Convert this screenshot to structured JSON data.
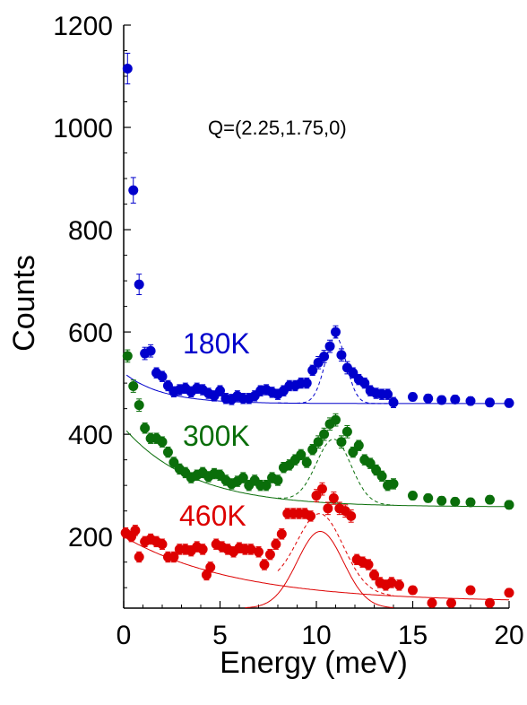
{
  "chart_data": {
    "type": "scatter",
    "xlabel": "Energy (meV)",
    "ylabel": "Counts",
    "xlim": [
      0,
      20
    ],
    "ylim": [
      60,
      1200
    ],
    "x_ticks": [
      "0",
      "5",
      "10",
      "15",
      "20"
    ],
    "y_ticks": [
      "200",
      "400",
      "600",
      "800",
      "1000",
      "1200"
    ],
    "annotation": "Q=(2.25,1.75,0)",
    "grid": false,
    "series": [
      {
        "name": "180K",
        "color": "#0000cc",
        "points": [
          [
            0.2,
            1115,
            30
          ],
          [
            0.5,
            877,
            25
          ],
          [
            0.8,
            693,
            20
          ],
          [
            1.1,
            558,
            12
          ],
          [
            1.4,
            563,
            12
          ],
          [
            1.7,
            520,
            10
          ],
          [
            2.0,
            513,
            10
          ],
          [
            2.3,
            495,
            10
          ],
          [
            2.6,
            483,
            10
          ],
          [
            2.9,
            487,
            10
          ],
          [
            3.2,
            490,
            10
          ],
          [
            3.5,
            483,
            10
          ],
          [
            3.8,
            490,
            10
          ],
          [
            4.1,
            487,
            10
          ],
          [
            4.4,
            480,
            10
          ],
          [
            4.7,
            475,
            10
          ],
          [
            5.0,
            485,
            10
          ],
          [
            5.3,
            470,
            10
          ],
          [
            5.6,
            468,
            10
          ],
          [
            5.9,
            475,
            10
          ],
          [
            6.2,
            470,
            10
          ],
          [
            6.5,
            470,
            10
          ],
          [
            6.8,
            475,
            10
          ],
          [
            7.1,
            485,
            10
          ],
          [
            7.4,
            487,
            10
          ],
          [
            7.7,
            482,
            10
          ],
          [
            8.0,
            478,
            10
          ],
          [
            8.3,
            485,
            10
          ],
          [
            8.6,
            495,
            10
          ],
          [
            8.9,
            495,
            10
          ],
          [
            9.2,
            500,
            10
          ],
          [
            9.5,
            500,
            10
          ],
          [
            9.8,
            525,
            10
          ],
          [
            10.1,
            540,
            12
          ],
          [
            10.4,
            552,
            12
          ],
          [
            10.7,
            572,
            12
          ],
          [
            11.0,
            600,
            12
          ],
          [
            11.3,
            555,
            12
          ],
          [
            11.6,
            530,
            12
          ],
          [
            11.9,
            520,
            10
          ],
          [
            12.2,
            507,
            10
          ],
          [
            12.5,
            500,
            10
          ],
          [
            12.8,
            485,
            10
          ],
          [
            13.1,
            480,
            10
          ],
          [
            13.4,
            478,
            10
          ],
          [
            13.7,
            478,
            10
          ],
          [
            14.0,
            462,
            10
          ],
          [
            15.0,
            473,
            8
          ],
          [
            15.8,
            470,
            8
          ],
          [
            16.5,
            467,
            8
          ],
          [
            17.2,
            468,
            8
          ],
          [
            18.0,
            465,
            8
          ],
          [
            19.0,
            462,
            8
          ],
          [
            20.0,
            461,
            8
          ]
        ]
      },
      {
        "name": "300K",
        "color": "#0a6e0a",
        "points": [
          [
            0.2,
            553,
            12
          ],
          [
            0.5,
            494,
            12
          ],
          [
            0.8,
            457,
            12
          ],
          [
            1.1,
            412,
            10
          ],
          [
            1.4,
            392,
            10
          ],
          [
            1.7,
            392,
            10
          ],
          [
            2.0,
            385,
            10
          ],
          [
            2.3,
            365,
            10
          ],
          [
            2.6,
            345,
            10
          ],
          [
            2.9,
            332,
            10
          ],
          [
            3.2,
            325,
            10
          ],
          [
            3.5,
            315,
            10
          ],
          [
            3.8,
            320,
            10
          ],
          [
            4.1,
            325,
            10
          ],
          [
            4.4,
            317,
            10
          ],
          [
            4.7,
            323,
            10
          ],
          [
            5.0,
            320,
            10
          ],
          [
            5.3,
            310,
            10
          ],
          [
            5.6,
            303,
            10
          ],
          [
            5.9,
            308,
            10
          ],
          [
            6.2,
            315,
            10
          ],
          [
            6.5,
            300,
            10
          ],
          [
            6.8,
            310,
            10
          ],
          [
            7.1,
            300,
            10
          ],
          [
            7.4,
            300,
            10
          ],
          [
            7.7,
            315,
            10
          ],
          [
            8.0,
            310,
            10
          ],
          [
            8.3,
            335,
            10
          ],
          [
            8.6,
            340,
            10
          ],
          [
            8.9,
            350,
            10
          ],
          [
            9.2,
            360,
            10
          ],
          [
            9.5,
            345,
            10
          ],
          [
            9.8,
            370,
            10
          ],
          [
            10.1,
            385,
            12
          ],
          [
            10.4,
            400,
            12
          ],
          [
            10.7,
            420,
            12
          ],
          [
            11.0,
            428,
            12
          ],
          [
            11.3,
            385,
            12
          ],
          [
            11.6,
            405,
            12
          ],
          [
            11.9,
            365,
            10
          ],
          [
            12.2,
            378,
            10
          ],
          [
            12.5,
            350,
            10
          ],
          [
            12.8,
            343,
            10
          ],
          [
            13.1,
            330,
            10
          ],
          [
            13.4,
            318,
            10
          ],
          [
            13.7,
            300,
            10
          ],
          [
            14.0,
            303,
            10
          ],
          [
            15.0,
            280,
            8
          ],
          [
            15.8,
            275,
            8
          ],
          [
            16.5,
            270,
            8
          ],
          [
            17.2,
            268,
            8
          ],
          [
            18.0,
            267,
            8
          ],
          [
            19.0,
            272,
            8
          ],
          [
            20.0,
            262,
            8
          ]
        ]
      },
      {
        "name": "460K",
        "color": "#dd0000",
        "points": [
          [
            0.1,
            207,
            10
          ],
          [
            0.4,
            200,
            10
          ],
          [
            0.6,
            212,
            10
          ],
          [
            0.8,
            160,
            10
          ],
          [
            1.1,
            190,
            10
          ],
          [
            1.4,
            195,
            10
          ],
          [
            1.7,
            190,
            10
          ],
          [
            2.0,
            185,
            10
          ],
          [
            2.3,
            160,
            10
          ],
          [
            2.6,
            160,
            10
          ],
          [
            2.9,
            175,
            10
          ],
          [
            3.2,
            175,
            10
          ],
          [
            3.5,
            172,
            10
          ],
          [
            3.8,
            180,
            10
          ],
          [
            4.1,
            175,
            10
          ],
          [
            4.3,
            125,
            10
          ],
          [
            4.5,
            140,
            10
          ],
          [
            4.8,
            185,
            10
          ],
          [
            5.1,
            180,
            10
          ],
          [
            5.4,
            175,
            10
          ],
          [
            5.7,
            170,
            10
          ],
          [
            6.0,
            178,
            10
          ],
          [
            6.3,
            175,
            10
          ],
          [
            6.6,
            175,
            10
          ],
          [
            7.0,
            170,
            10
          ],
          [
            7.3,
            145,
            10
          ],
          [
            7.6,
            165,
            10
          ],
          [
            7.9,
            185,
            10
          ],
          [
            8.2,
            205,
            10
          ],
          [
            8.5,
            245,
            10
          ],
          [
            8.8,
            245,
            10
          ],
          [
            9.1,
            245,
            10
          ],
          [
            9.4,
            245,
            10
          ],
          [
            9.7,
            240,
            10
          ],
          [
            10.0,
            280,
            12
          ],
          [
            10.3,
            293,
            12
          ],
          [
            10.6,
            255,
            12
          ],
          [
            10.9,
            275,
            12
          ],
          [
            11.2,
            255,
            12
          ],
          [
            11.5,
            250,
            12
          ],
          [
            11.8,
            240,
            12
          ],
          [
            12.1,
            155,
            10
          ],
          [
            12.4,
            150,
            10
          ],
          [
            12.7,
            145,
            10
          ],
          [
            13.0,
            125,
            10
          ],
          [
            13.3,
            110,
            10
          ],
          [
            13.6,
            105,
            10
          ],
          [
            13.9,
            110,
            10
          ],
          [
            14.3,
            105,
            10
          ],
          [
            15.0,
            95,
            8
          ],
          [
            16.0,
            70,
            8
          ],
          [
            17.0,
            70,
            8
          ],
          [
            18.0,
            95,
            8
          ],
          [
            19.0,
            70,
            8
          ],
          [
            20.0,
            90,
            8
          ]
        ]
      }
    ]
  }
}
